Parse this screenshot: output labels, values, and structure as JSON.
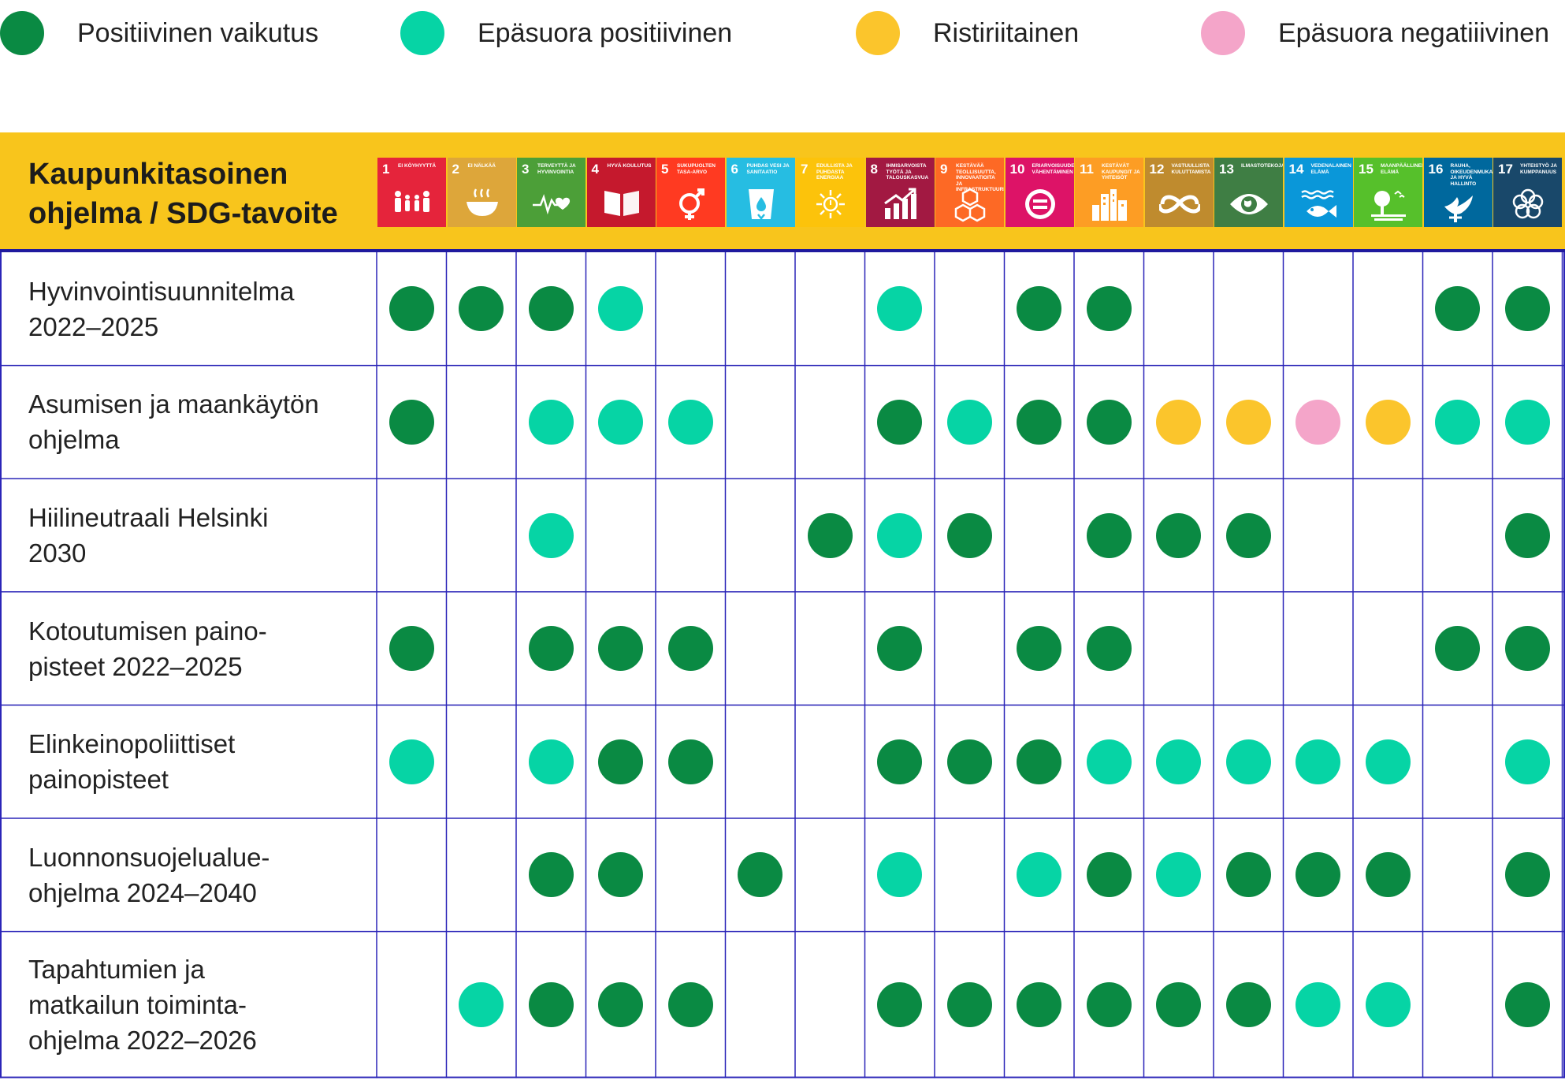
{
  "legend": [
    {
      "label": "Positiivinen vaikutus",
      "color": "#0a8a43"
    },
    {
      "label": "Epäsuora positiivinen",
      "color": "#06d4a5"
    },
    {
      "label": "Ristiriitainen",
      "color": "#fbc52c"
    },
    {
      "label": "Epäsuora negatiiivinen",
      "color": "#f4a5c9"
    }
  ],
  "header": {
    "title_line1": "Kaupunkitasoinen",
    "title_line2": "ohjelma / SDG-tavoite"
  },
  "sdgs": [
    {
      "num": "1",
      "label": "Ei köyhyyttä",
      "color": "#e5243b",
      "icon": "people-icon"
    },
    {
      "num": "2",
      "label": "Ei nälkää",
      "color": "#dda63a",
      "icon": "bowl-icon"
    },
    {
      "num": "3",
      "label": "Terveyttä ja hyvinvointia",
      "color": "#4c9f38",
      "icon": "heartbeat-icon"
    },
    {
      "num": "4",
      "label": "Hyvä koulutus",
      "color": "#c5192d",
      "icon": "book-icon"
    },
    {
      "num": "5",
      "label": "Sukupuolten tasa-arvo",
      "color": "#ff3a21",
      "icon": "gender-icon"
    },
    {
      "num": "6",
      "label": "Puhdas vesi ja sanitaatio",
      "color": "#26bde2",
      "icon": "water-glass-icon"
    },
    {
      "num": "7",
      "label": "Edullista ja puhdasta energiaa",
      "color": "#fcc30b",
      "icon": "sun-icon"
    },
    {
      "num": "8",
      "label": "Ihmisarvoista työtä ja talouskasvua",
      "color": "#a21942",
      "icon": "growth-chart-icon"
    },
    {
      "num": "9",
      "label": "Kestävää teollisuutta, innovaatioita ja infrastruktuureja",
      "color": "#fd6925",
      "icon": "cubes-icon"
    },
    {
      "num": "10",
      "label": "Eriarvoisuuden vähentäminen",
      "color": "#dd1367",
      "icon": "equals-icon"
    },
    {
      "num": "11",
      "label": "Kestävät kaupungit ja yhteisöt",
      "color": "#fd9d24",
      "icon": "buildings-icon"
    },
    {
      "num": "12",
      "label": "Vastuullista kuluttamista",
      "color": "#bf8b2e",
      "icon": "infinity-icon"
    },
    {
      "num": "13",
      "label": "Ilmastotekoja",
      "color": "#3f7e44",
      "icon": "eye-globe-icon"
    },
    {
      "num": "14",
      "label": "Vedenalainen elämä",
      "color": "#0a97d9",
      "icon": "fish-icon"
    },
    {
      "num": "15",
      "label": "Maanpäällinen elämä",
      "color": "#56c02b",
      "icon": "tree-icon"
    },
    {
      "num": "16",
      "label": "Rauha, oikeudenmukaisuus ja hyvä hallinto",
      "color": "#00689d",
      "icon": "dove-icon"
    },
    {
      "num": "17",
      "label": "Yhteistyö ja kumppanuus",
      "color": "#19486a",
      "icon": "flower-rings-icon"
    }
  ],
  "chart_data": {
    "type": "table",
    "title": "Kaupunkitasoinen ohjelma / SDG-tavoite",
    "columns": [
      "1",
      "2",
      "3",
      "4",
      "5",
      "6",
      "7",
      "8",
      "9",
      "10",
      "11",
      "12",
      "13",
      "14",
      "15",
      "16",
      "17"
    ],
    "legend": {
      "P": "Positiivinen vaikutus",
      "I": "Epäsuora positiivinen",
      "R": "Ristiriitainen",
      "N": "Epäsuora negatiiivinen"
    },
    "rows": [
      {
        "label": "Hyvinvointisuunnitelma\n2022–2025",
        "cells": [
          "P",
          "P",
          "P",
          "I",
          "",
          "",
          "",
          "I",
          "",
          "P",
          "P",
          "",
          "",
          "",
          "",
          "P",
          "P"
        ]
      },
      {
        "label": "Asumisen ja maankäytön\nohjelma",
        "cells": [
          "P",
          "",
          "I",
          "I",
          "I",
          "",
          "",
          "P",
          "I",
          "P",
          "P",
          "R",
          "R",
          "N",
          "R",
          "I",
          "I"
        ]
      },
      {
        "label": "Hiilineutraali Helsinki\n2030",
        "cells": [
          "",
          "",
          "I",
          "",
          "",
          "",
          "P",
          "I",
          "P",
          "",
          "P",
          "P",
          "P",
          "",
          "",
          "",
          "P"
        ]
      },
      {
        "label": "Kotoutumisen paino-\npisteet 2022–2025",
        "cells": [
          "P",
          "",
          "P",
          "P",
          "P",
          "",
          "",
          "P",
          "",
          "P",
          "P",
          "",
          "",
          "",
          "",
          "P",
          "P"
        ]
      },
      {
        "label": "Elinkeinopoliittiset\npainopisteet",
        "cells": [
          "I",
          "",
          "I",
          "P",
          "P",
          "",
          "",
          "P",
          "P",
          "P",
          "I",
          "I",
          "I",
          "I",
          "I",
          "",
          "I"
        ]
      },
      {
        "label": "Luonnonsuojelualue-\nohjelma 2024–2040",
        "cells": [
          "",
          "",
          "P",
          "P",
          "",
          "P",
          "",
          "I",
          "",
          "I",
          "P",
          "I",
          "P",
          "P",
          "P",
          "",
          "P"
        ]
      },
      {
        "label": "Tapahtumien ja\nmatkailun toiminta-\nohjelma 2022–2026",
        "cells": [
          "",
          "I",
          "P",
          "P",
          "P",
          "",
          "",
          "P",
          "P",
          "P",
          "P",
          "P",
          "P",
          "I",
          "I",
          "",
          "P"
        ]
      }
    ]
  }
}
